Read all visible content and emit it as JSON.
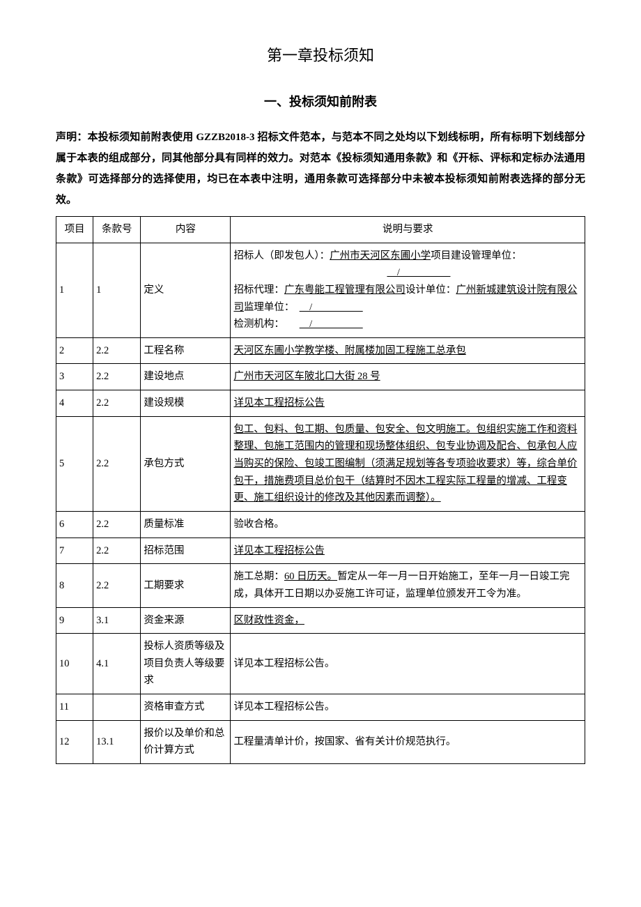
{
  "chapter_title": "第一章投标须知",
  "section_title": "一、投标须知前附表",
  "declaration_prefix": "声明：",
  "declaration_body": "本投标须知前附表使用 GZZB2018-3 招标文件范本，与范本不同之处均以下划线标明，所有标明下划线部分属于本表的组成部分，同其他部分具有同样的效力。对范本《投标须知通用条款》和《开标、评标和定标办法通用条款》可选择部分的选择使用，均已在本表中注明，通用条款可选择部分中未被本投标须知前附表选择的部分无效。",
  "table": {
    "headers": {
      "item": "项目",
      "clause": "条款号",
      "content": "内容",
      "desc": "说明与要求"
    },
    "rows": [
      {
        "item": "1",
        "clause": "1",
        "content": "定义",
        "desc_html": true,
        "desc_parts": {
          "a1": "招标人（即发包人）：",
          "a1u": "广州市天河区东圃小学",
          "a2": "项目建设管理单位：",
          "a3": "招标代理：",
          "a3u": "广东粤能工程管理有限公司",
          "a4": "设计单位：",
          "a4u": "广州新城建筑设计院有限公司",
          "a5": "监理单位：",
          "a6": "检测机构："
        }
      },
      {
        "item": "2",
        "clause": "2.2",
        "content": "工程名称",
        "desc_underline": true,
        "desc": "天河区东圃小学教学楼、附属楼加固工程施工总承包"
      },
      {
        "item": "3",
        "clause": "2.2",
        "content": "建设地点",
        "desc_underline": true,
        "desc": "广州市天河区车陂北口大街 28 号"
      },
      {
        "item": "4",
        "clause": "2.2",
        "content": "建设规模",
        "desc_underline": true,
        "desc": "详见本工程招标公告"
      },
      {
        "item": "5",
        "clause": "2.2",
        "content": "承包方式",
        "desc_underline": true,
        "desc": "包工、包料、包工期、包质量、包安全、包文明施工。包组织实施工作和资料整理、包施工范围内的管理和现场整体组织、包专业协调及配合、包承包人应当购买的保险、包竣工图编制（须满足规划等各专项验收要求）等，综合单价包干，措施费项目总价包干（结算时不因木工程实际工程量的增减、工程变更、施工组织设计的修改及其他因素而调整）。"
      },
      {
        "item": "6",
        "clause": "2.2",
        "content": "质量标准",
        "desc": "验收合格。"
      },
      {
        "item": "7",
        "clause": "2.2",
        "content": "招标范围",
        "desc_underline": true,
        "desc": "详见本工程招标公告"
      },
      {
        "item": "8",
        "clause": "2.2",
        "content": "工期要求",
        "desc_html8": true,
        "desc_parts8": {
          "p1": "施工总期：",
          "p1u": "60 日历天。",
          "p2": "暂定从一年一月一日开始施工，至年一月一日竣工完成，具体开工日期以办妥施工许可证，监理单位颁发开工令为准。"
        }
      },
      {
        "item": "9",
        "clause": "3.1",
        "content": "资金来源",
        "desc_underline": true,
        "desc": "区财政性资金，"
      },
      {
        "item": "10",
        "clause": "4.1",
        "content": "投标人资质等级及项目负责人等级要求",
        "desc": "详见本工程招标公告。"
      },
      {
        "item": "11",
        "clause": "",
        "content": "资格审查方式",
        "desc": "详见本工程招标公告。"
      },
      {
        "item": "12",
        "clause": "13.1",
        "content": "报价以及单价和总价计算方式",
        "desc": "工程量清单计价，按国家、省有关计价规范执行。"
      }
    ]
  },
  "styling": {
    "background_color": "#ffffff",
    "text_color": "#000000",
    "border_color": "#000000",
    "chapter_title_fontsize": 22,
    "section_title_fontsize": 18,
    "body_fontsize": 15,
    "table_fontsize": 14.5,
    "line_height": 1.8,
    "font_family": "SimSun"
  }
}
